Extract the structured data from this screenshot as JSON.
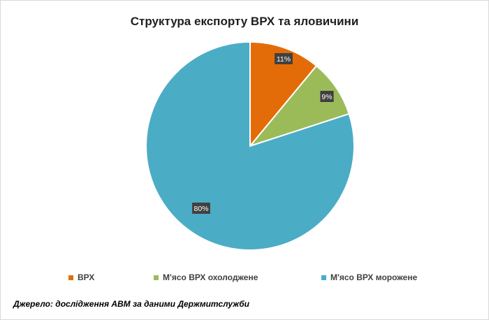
{
  "chart_data": {
    "type": "pie",
    "title": "Структура експорту ВРХ та яловичини",
    "categories": [
      "ВРХ",
      "М'ясо ВРХ охолоджене",
      "М'ясо ВРХ морожене"
    ],
    "values": [
      11,
      9,
      80
    ],
    "value_labels": [
      "11%",
      "9%",
      "80%"
    ],
    "colors": [
      "#E36C09",
      "#9BBB59",
      "#4BACC6"
    ],
    "legend_position": "bottom",
    "start_angle_deg": 0,
    "direction": "clockwise"
  },
  "source_note": "Джерело: дослідження АВМ за даними Держмитслужби"
}
